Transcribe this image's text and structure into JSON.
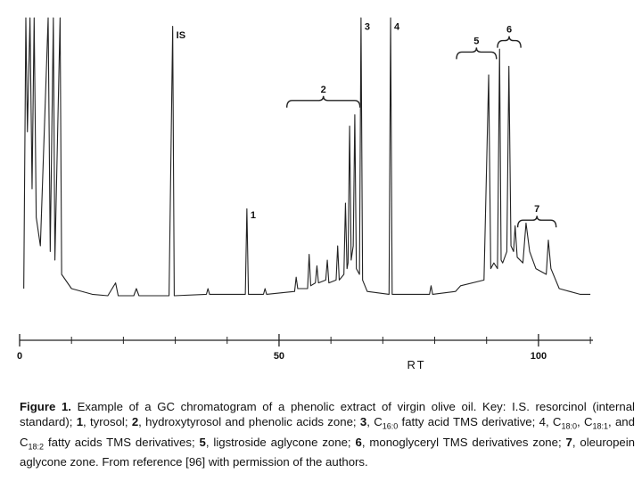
{
  "chart_data": {
    "type": "line",
    "x_label": "RT",
    "color": "#222",
    "xlim": [
      0,
      110.5
    ],
    "xticks": [
      0,
      50,
      100
    ],
    "xminor": [
      10,
      20,
      30,
      40,
      60,
      70,
      80,
      90,
      110
    ],
    "ylim": [
      0,
      100
    ],
    "x": [
      0.8,
      1.2,
      1.5,
      2,
      2.4,
      2.8,
      3.2,
      4,
      5.5,
      5.9,
      6.5,
      6.8,
      7.8,
      8.1,
      10,
      14,
      17,
      18.5,
      19,
      22,
      22.5,
      23,
      28.8,
      29.5,
      29.8,
      36,
      36.3,
      36.6,
      43.5,
      43.8,
      44.1,
      47,
      47.3,
      47.6,
      53,
      53.3,
      53.6,
      55.5,
      55.8,
      56.1,
      57,
      57.3,
      57.6,
      59,
      59.3,
      59.6,
      61,
      61.3,
      61.6,
      62.5,
      62.8,
      63.1,
      63.3,
      63.6,
      63.9,
      64.3,
      64.6,
      64.9,
      65.5,
      65.8,
      66.1,
      67,
      71.2,
      71.5,
      71.8,
      79,
      79.3,
      79.6,
      84,
      85,
      89.5,
      90.4,
      90.8,
      91.4,
      92.1,
      92.5,
      92.8,
      93.1,
      93.9,
      94.3,
      94.7,
      95.2,
      95.5,
      95.9,
      97,
      97.6,
      98.3,
      99.5,
      101.5,
      101.9,
      102.4,
      104,
      106,
      108,
      110
    ],
    "values": [
      5,
      100,
      60,
      100,
      40,
      100,
      30,
      20,
      100,
      18,
      100,
      15,
      100,
      10,
      5,
      3,
      2.5,
      7,
      2.5,
      2.5,
      5,
      2.5,
      2.5,
      97,
      2.5,
      3,
      5,
      3,
      3,
      33,
      3,
      3,
      5,
      3,
      4,
      9,
      5,
      5,
      17,
      6,
      7,
      13,
      7,
      8,
      15,
      7,
      8,
      20,
      8,
      10,
      35,
      12,
      14,
      62,
      15,
      20,
      66,
      12,
      10,
      100,
      8,
      4,
      3,
      100,
      3,
      3,
      6,
      3,
      4,
      6,
      8,
      80,
      12,
      14,
      12,
      89,
      15,
      14,
      18,
      83,
      20,
      18,
      27,
      16,
      14,
      28,
      18,
      12,
      10,
      22,
      12,
      5,
      4,
      3,
      3
    ],
    "annotations": [
      {
        "text": "IS",
        "x": 29.5,
        "y": 95
      },
      {
        "text": "1",
        "x": 43.8,
        "y": 32
      },
      {
        "text": "3",
        "x": 65.8,
        "y": 98
      },
      {
        "text": "4",
        "x": 71.5,
        "y": 98
      }
    ],
    "brackets": [
      {
        "text": "2",
        "x": [
          51.5,
          65.6
        ],
        "y": 71
      },
      {
        "text": "5",
        "x": [
          84.2,
          91.9
        ],
        "y": 88
      },
      {
        "text": "6",
        "x": [
          92.1,
          96.6
        ],
        "y": 92
      },
      {
        "text": "7",
        "x": [
          96,
          103.4
        ],
        "y": 29
      }
    ]
  },
  "caption": [
    {
      "text": "Figure 1.",
      "style": "bold"
    },
    {
      "text": " Example of a GC chromatogram of a phenolic extract of virgin olive oil. Key: I.S. resorcinol (internal standard); "
    },
    {
      "text": "1",
      "style": "bold"
    },
    {
      "text": ", tyrosol; "
    },
    {
      "text": "2",
      "style": "bold"
    },
    {
      "text": ", hydroxytyrosol and phenolic acids zone; "
    },
    {
      "text": "3",
      "style": "bold"
    },
    {
      "text": ", C"
    },
    {
      "text": "16:0",
      "style": "sub"
    },
    {
      "text": " fatty acid TMS derivative; 4, C"
    },
    {
      "text": "18:0",
      "style": "sub"
    },
    {
      "text": ", C"
    },
    {
      "text": "18:1",
      "style": "sub"
    },
    {
      "text": ", and C"
    },
    {
      "text": "18:2",
      "style": "sub"
    },
    {
      "text": " fatty acids TMS derivatives; "
    },
    {
      "text": "5",
      "style": "bold"
    },
    {
      "text": ", ligstroside aglycone zone; "
    },
    {
      "text": "6",
      "style": "bold"
    },
    {
      "text": ", monoglyceryl TMS derivatives zone; "
    },
    {
      "text": "7",
      "style": "bold"
    },
    {
      "text": ", oleuropein aglycone zone. From reference [96] with permission of the authors."
    }
  ]
}
